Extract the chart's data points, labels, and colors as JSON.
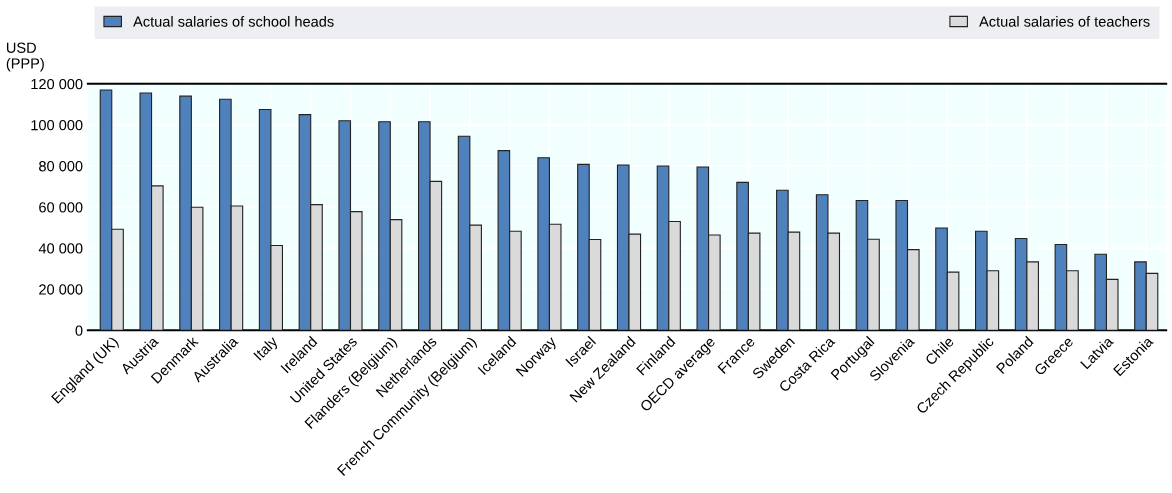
{
  "chart_data": {
    "type": "bar",
    "ylabel": "USD\n(PPP)",
    "categories": [
      "England (UK)",
      "Austria",
      "Denmark",
      "Australia",
      "Italy",
      "Ireland",
      "United States",
      "Flanders (Belgium)",
      "Netherlands",
      "French Community (Belgium)",
      "Iceland",
      "Norway",
      "Israel",
      "New Zealand",
      "Finland",
      "OECD average",
      "France",
      "Sweden",
      "Costa Rica",
      "Portugal",
      "Slovenia",
      "Chile",
      "Czech Republic",
      "Poland",
      "Greece",
      "Latvia",
      "Estonia"
    ],
    "series": [
      {
        "name": "Actual salaries of school heads",
        "color": "#4f81bd",
        "values": [
          117000,
          115500,
          114000,
          112500,
          107500,
          105000,
          102000,
          101500,
          101500,
          94500,
          87500,
          84000,
          80800,
          80500,
          80000,
          79500,
          72000,
          68200,
          66000,
          63200,
          63200,
          49800,
          48200,
          44700,
          41800,
          37000,
          33300
        ]
      },
      {
        "name": "Actual salaries of teachers",
        "color": "#dadada",
        "values": [
          49200,
          70300,
          59900,
          60500,
          41300,
          61200,
          57800,
          53900,
          72500,
          51200,
          48200,
          51600,
          44200,
          46800,
          53000,
          46400,
          47300,
          47800,
          47300,
          44300,
          39300,
          28300,
          29000,
          33300,
          29000,
          24800,
          27700
        ]
      }
    ],
    "ylim": [
      0,
      120000
    ],
    "yticks": [
      {
        "value": 0,
        "label": "0"
      },
      {
        "value": 20000,
        "label": "20 000"
      },
      {
        "value": 40000,
        "label": "40 000"
      },
      {
        "value": 60000,
        "label": "60 000"
      },
      {
        "value": 80000,
        "label": "80 000"
      },
      {
        "value": 100000,
        "label": "100 000"
      },
      {
        "value": 120000,
        "label": "120 000"
      }
    ],
    "grid": true,
    "legend": "top"
  }
}
